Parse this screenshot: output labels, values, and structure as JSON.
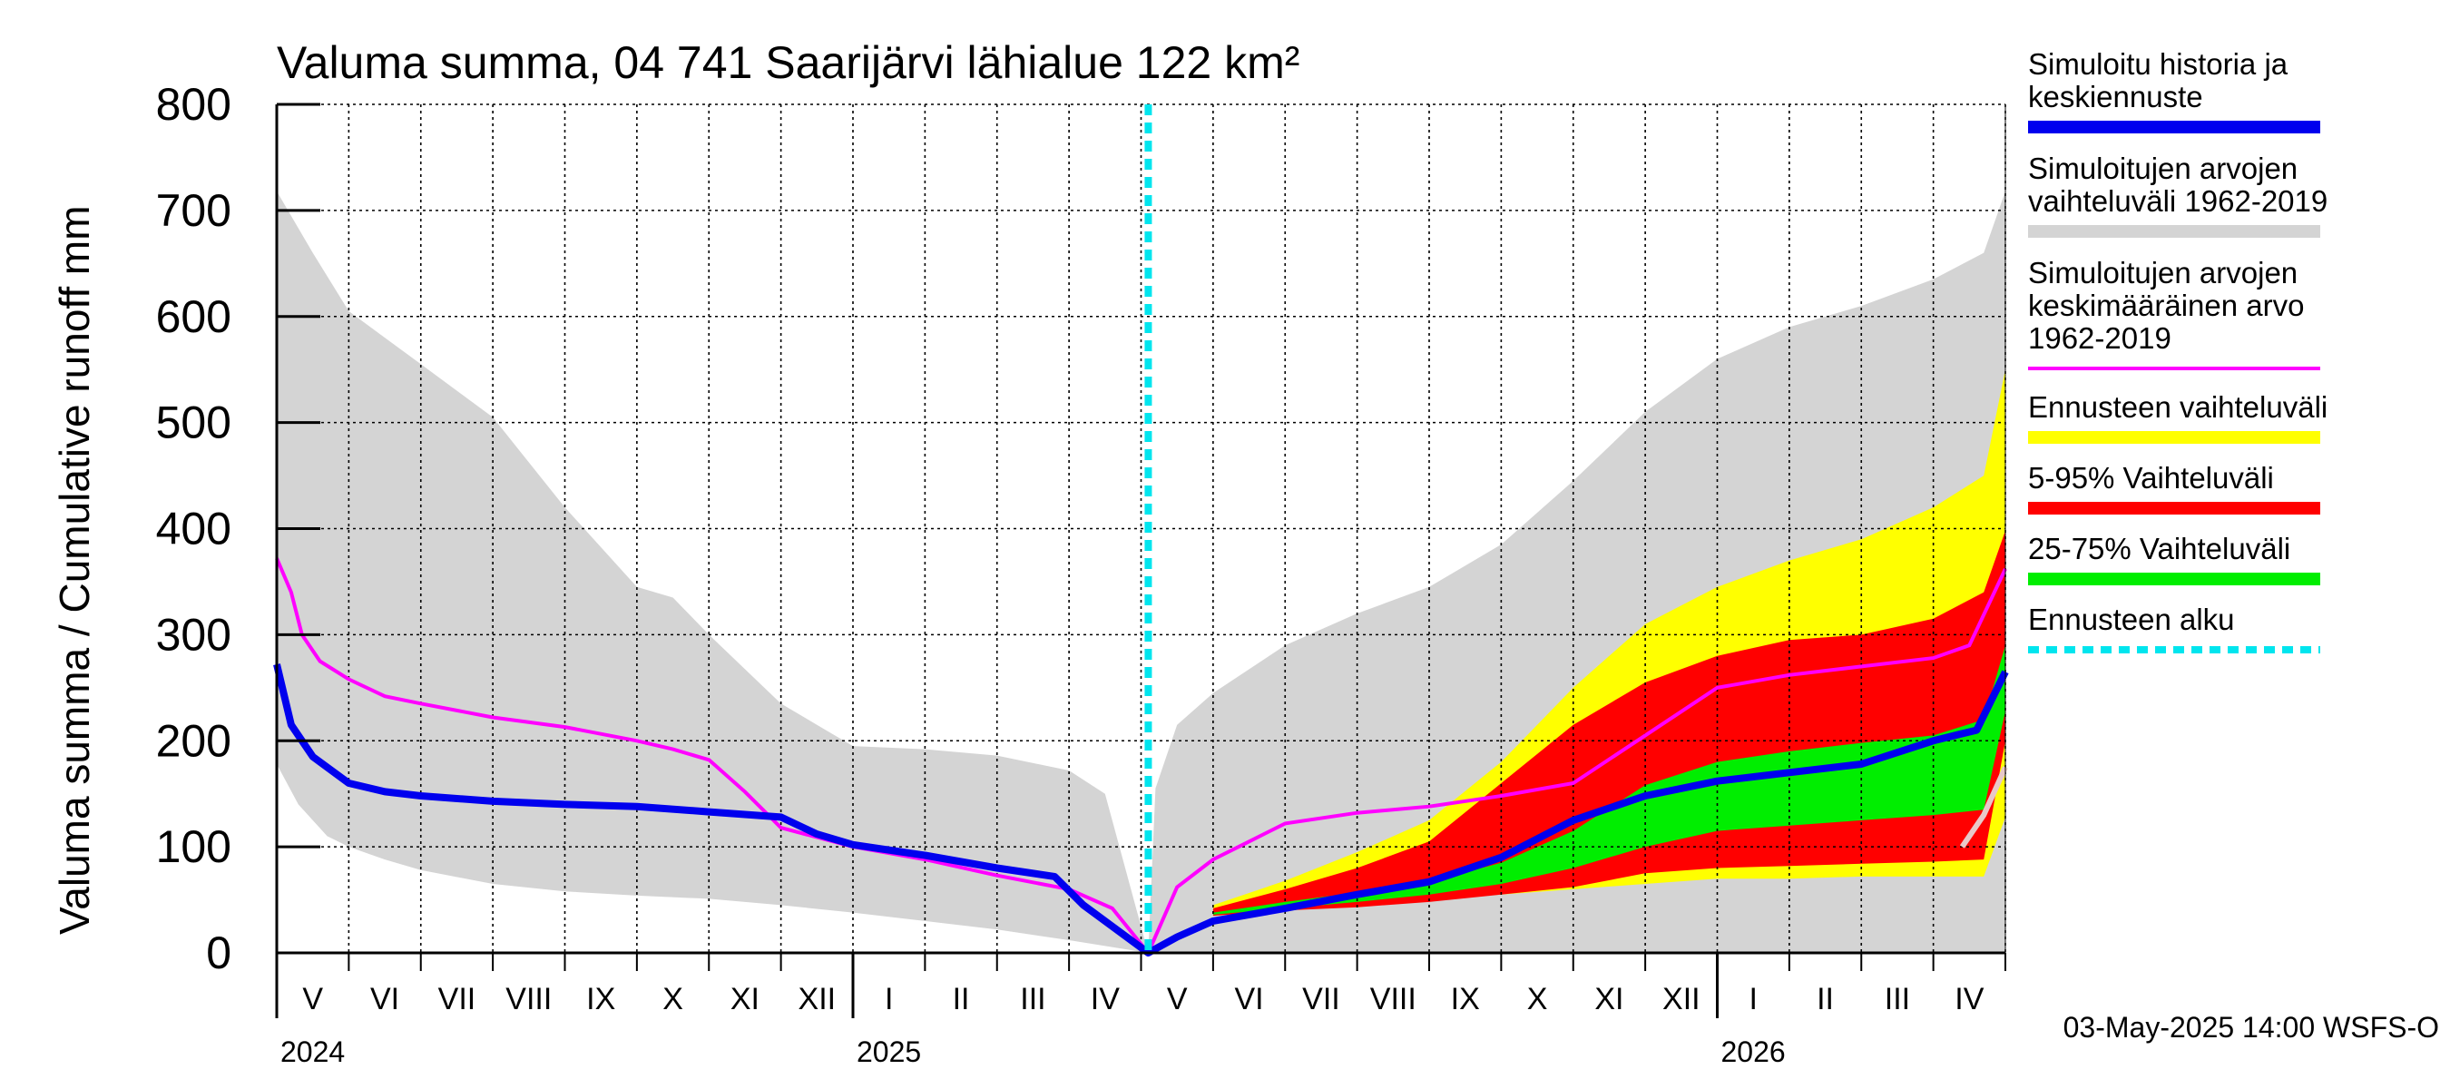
{
  "chart_data": {
    "type": "area",
    "title": "Valuma summa, 04 741 Saarijärvi lähialue 122 km²",
    "ylabel": "Valuma summa / Cumulative runoff    mm",
    "ylim": [
      0,
      800
    ],
    "yticks": [
      0,
      100,
      200,
      300,
      400,
      500,
      600,
      700,
      800
    ],
    "x_range_months": [
      0,
      24
    ],
    "forecast_start_month": 12.1,
    "months": [
      "V",
      "VI",
      "VII",
      "VIII",
      "IX",
      "X",
      "XI",
      "XII",
      "I",
      "II",
      "III",
      "IV",
      "V",
      "VI",
      "VII",
      "VIII",
      "IX",
      "X",
      "XI",
      "XII",
      "I",
      "II",
      "III",
      "IV"
    ],
    "years": [
      {
        "label": "2024",
        "month": 0
      },
      {
        "label": "2025",
        "month": 8
      },
      {
        "label": "2026",
        "month": 20
      }
    ],
    "footer": "03-May-2025 14:00 WSFS-O",
    "series": [
      {
        "name": "Simuloitujen arvojen vaihteluväli 1962-2019 (upper)",
        "color": "#d4d4d4",
        "x": [
          0,
          0.5,
          1,
          1.5,
          2,
          3,
          4,
          5,
          5.5,
          6,
          7,
          7.5,
          8,
          9,
          10,
          11,
          11.5,
          12.1
        ],
        "values": [
          718,
          660,
          605,
          580,
          555,
          505,
          420,
          345,
          335,
          300,
          235,
          215,
          195,
          192,
          186,
          172,
          150,
          0
        ]
      },
      {
        "name": "Simuloitujen arvojen vaihteluväli 1962-2019 (lower)",
        "color": "#d4d4d4",
        "x": [
          0,
          0.3,
          0.7,
          1,
          1.5,
          2,
          3,
          4,
          5,
          6,
          7,
          8,
          9,
          10,
          11,
          12.1
        ],
        "values": [
          178,
          140,
          110,
          100,
          88,
          78,
          65,
          58,
          54,
          51,
          45,
          38,
          30,
          22,
          12,
          0
        ]
      },
      {
        "name": "Simuloitujen arvojen vaihteluväli 1962-2019 (upper, forecast)",
        "color": "#d4d4d4",
        "x": [
          12.1,
          12.2,
          12.5,
          13,
          14,
          15,
          16,
          17,
          18,
          19,
          20,
          21,
          22,
          23,
          23.7,
          24
        ],
        "values": [
          0,
          155,
          215,
          245,
          290,
          320,
          345,
          385,
          445,
          510,
          560,
          590,
          610,
          635,
          660,
          718
        ]
      },
      {
        "name": "Ennusteen vaihteluväli (upper)",
        "color": "#ffff00",
        "x": [
          13,
          14,
          15,
          16,
          17,
          18,
          19,
          20,
          21,
          22,
          23,
          23.7,
          24
        ],
        "values": [
          45,
          68,
          95,
          125,
          180,
          250,
          310,
          345,
          370,
          390,
          420,
          450,
          550
        ]
      },
      {
        "name": "Ennusteen vaihteluväli (lower)",
        "color": "#ffff00",
        "x": [
          13,
          14,
          15,
          16,
          17,
          18,
          19,
          20,
          21,
          22,
          23,
          23.7,
          24
        ],
        "values": [
          35,
          40,
          45,
          50,
          55,
          60,
          65,
          70,
          70,
          72,
          72,
          72,
          128
        ]
      },
      {
        "name": "5-95% Vaihteluväli (upper)",
        "color": "#ff0000",
        "x": [
          13,
          14,
          15,
          16,
          17,
          18,
          19,
          20,
          21,
          22,
          23,
          23.7,
          24
        ],
        "values": [
          42,
          60,
          80,
          105,
          160,
          215,
          255,
          280,
          295,
          300,
          315,
          340,
          398
        ]
      },
      {
        "name": "5-95% Vaihteluväli (lower)",
        "color": "#ff0000",
        "x": [
          13,
          14,
          15,
          16,
          17,
          18,
          19,
          20,
          21,
          22,
          23,
          23.7,
          24
        ],
        "values": [
          35,
          40,
          43,
          48,
          55,
          62,
          75,
          80,
          82,
          84,
          86,
          88,
          200
        ]
      },
      {
        "name": "25-75% Vaihteluväli (upper)",
        "color": "#00ee00",
        "x": [
          13,
          14,
          15,
          16,
          17,
          18,
          19,
          20,
          21,
          22,
          23,
          23.7,
          24
        ],
        "values": [
          38,
          48,
          57,
          67,
          85,
          115,
          158,
          180,
          190,
          198,
          205,
          220,
          290
        ]
      },
      {
        "name": "25-75% Vaihteluväli (lower)",
        "color": "#00ee00",
        "x": [
          13,
          14,
          15,
          16,
          17,
          18,
          19,
          20,
          21,
          22,
          23,
          23.7,
          24
        ],
        "values": [
          36,
          42,
          48,
          55,
          65,
          80,
          100,
          115,
          120,
          125,
          130,
          135,
          228
        ]
      },
      {
        "name": "Simuloitujen arvojen keskimääräinen arvo 1962-2019",
        "color": "#ff00ff",
        "x": [
          0,
          0.2,
          0.35,
          0.6,
          1,
          1.5,
          2,
          3,
          4,
          5,
          5.5,
          6,
          6.5,
          7,
          8,
          9,
          10,
          11,
          11.6,
          12.1,
          12.5,
          13,
          13.5,
          14,
          15,
          16,
          17,
          18,
          19,
          20,
          21,
          22,
          23,
          23.5,
          24
        ],
        "values": [
          372,
          340,
          300,
          275,
          258,
          242,
          235,
          222,
          213,
          200,
          192,
          182,
          152,
          118,
          100,
          88,
          73,
          60,
          42,
          0,
          62,
          88,
          105,
          122,
          132,
          138,
          148,
          160,
          205,
          250,
          262,
          270,
          278,
          290,
          362
        ]
      },
      {
        "name": "Simuloitu historia ja keskiennuste",
        "color": "#0000ee",
        "x": [
          0,
          0.2,
          0.5,
          1,
          1.5,
          2,
          3,
          4,
          5,
          6,
          7,
          7.5,
          8,
          9,
          10,
          10.8,
          11.2,
          12.1,
          12.5,
          13,
          14,
          15,
          16,
          17,
          18,
          19,
          20,
          21,
          22,
          23,
          23.3,
          23.6,
          24
        ],
        "values": [
          272,
          215,
          185,
          160,
          152,
          148,
          143,
          140,
          138,
          133,
          128,
          112,
          102,
          92,
          80,
          72,
          45,
          0,
          15,
          30,
          42,
          55,
          67,
          90,
          125,
          148,
          162,
          170,
          178,
          200,
          205,
          210,
          265
        ]
      },
      {
        "name": "Median (light)",
        "color": "#e8c8c8",
        "x": [
          23.4,
          23.7,
          24
        ],
        "values": [
          100,
          130,
          175
        ]
      }
    ]
  },
  "legend": {
    "items": [
      {
        "label_lines": [
          "Simuloitu historia ja",
          "keskiennuste"
        ],
        "color": "#0000ee",
        "style": "solid"
      },
      {
        "label_lines": [
          "Simuloitujen arvojen",
          "vaihteluväli 1962-2019"
        ],
        "color": "#d4d4d4",
        "style": "solid"
      },
      {
        "label_lines": [
          "Simuloitujen arvojen",
          "keskimääräinen arvo",
          "   1962-2019"
        ],
        "color": "#ff00ff",
        "style": "thin"
      },
      {
        "label_lines": [
          "Ennusteen vaihteluväli"
        ],
        "color": "#ffff00",
        "style": "solid"
      },
      {
        "label_lines": [
          "5-95% Vaihteluväli"
        ],
        "color": "#ff0000",
        "style": "solid"
      },
      {
        "label_lines": [
          "25-75% Vaihteluväli"
        ],
        "color": "#00ee00",
        "style": "solid"
      },
      {
        "label_lines": [
          "Ennusteen alku"
        ],
        "color": "#00e5ee",
        "style": "dashed"
      }
    ]
  }
}
